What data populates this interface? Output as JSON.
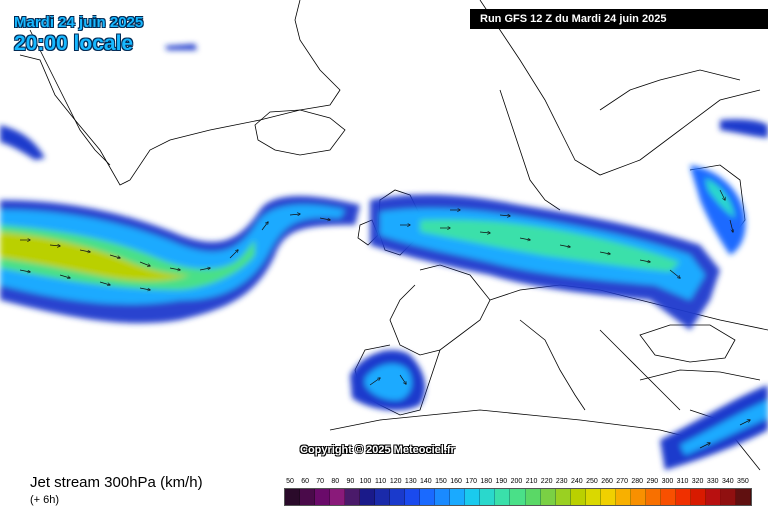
{
  "header": {
    "date": "Mardi 24 juin 2025",
    "time": "20:00 locale",
    "run": "Run GFS 12 Z du Mardi 24 juin 2025"
  },
  "copyright": "Copyright © 2025 Meteociel.fr",
  "footer": {
    "title": "Jet stream 300hPa (km/h)",
    "step": "(+ 6h)"
  },
  "legend": {
    "labels": [
      "50",
      "60",
      "70",
      "80",
      "90",
      "100",
      "110",
      "120",
      "130",
      "140",
      "150",
      "160",
      "170",
      "180",
      "190",
      "200",
      "210",
      "220",
      "230",
      "240",
      "250",
      "260",
      "270",
      "280",
      "290",
      "300",
      "310",
      "320",
      "330",
      "340",
      "350"
    ],
    "colors": [
      "#2a0a2a",
      "#4a0a4a",
      "#6a0a6a",
      "#8a1a7a",
      "#4a1a6a",
      "#1a1a8a",
      "#1a2aaa",
      "#1a3acc",
      "#1a4aee",
      "#1a6aff",
      "#1a8aff",
      "#1aaaff",
      "#1acaee",
      "#2ad8cc",
      "#3ae0aa",
      "#4ae088",
      "#5ad866",
      "#7ad044",
      "#9ad022",
      "#bad000",
      "#dad800",
      "#f0d000",
      "#f8b000",
      "#f89000",
      "#f87000",
      "#f85000",
      "#f03000",
      "#d81a00",
      "#b81010",
      "#901010",
      "#601010"
    ]
  },
  "colors": {
    "land_line": "#000000",
    "jet_low": "#1a3acc",
    "jet_mid": "#1aaaff",
    "jet_high": "#9ad022",
    "jet_max": "#dad800"
  }
}
